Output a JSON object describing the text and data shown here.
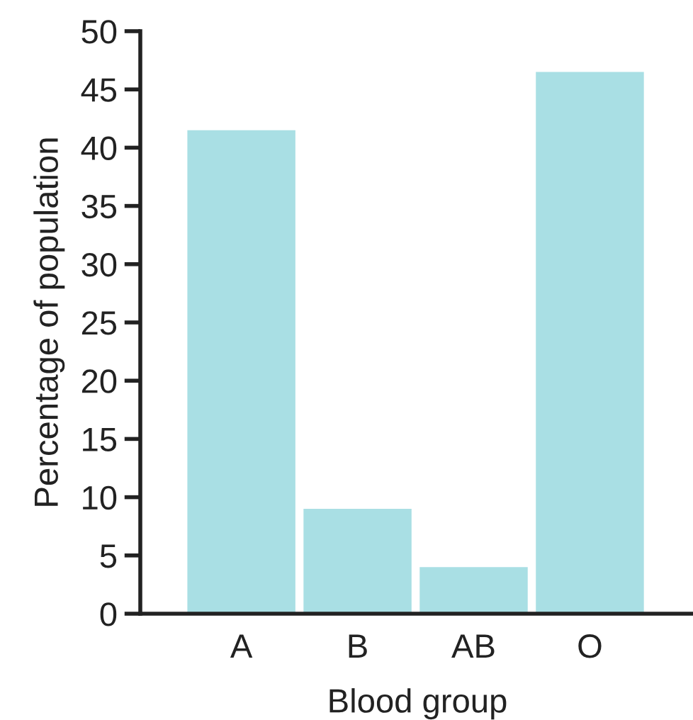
{
  "chart_data": {
    "type": "bar",
    "xlabel": "Blood group",
    "ylabel": "Percentage of population",
    "categories": [
      "A",
      "B",
      "AB",
      "O"
    ],
    "values": [
      41.5,
      9,
      4,
      46.5
    ],
    "color": "#a9dfe4",
    "ylim": [
      0,
      50
    ],
    "yticks": [
      0,
      5,
      10,
      15,
      20,
      25,
      30,
      35,
      40,
      45,
      50
    ],
    "grid": false,
    "legend": false
  }
}
